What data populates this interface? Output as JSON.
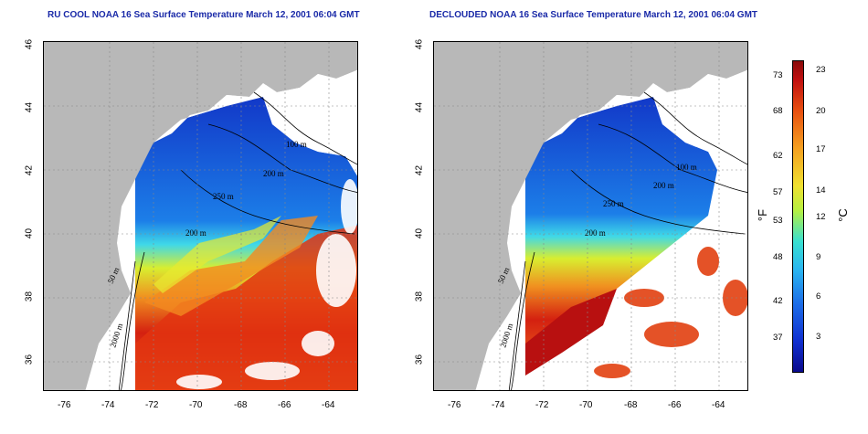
{
  "left_map": {
    "title": "RU COOL NOAA 16 Sea Surface Temperature March 12, 2001 06:04 GMT",
    "contours": [
      "100 m",
      "200 m",
      "250 m",
      "200 m",
      "50 m",
      "2000 m"
    ]
  },
  "right_map": {
    "title": "DECLOUDED NOAA 16 Sea Surface Temperature March 12, 2001 06:04 GMT",
    "contours": [
      "100 m",
      "200 m",
      "250 m",
      "200 m",
      "50 m",
      "2000 m"
    ]
  },
  "axes": {
    "x_ticks": [
      "-76",
      "-74",
      "-72",
      "-70",
      "-68",
      "-66",
      "-64"
    ],
    "y_ticks": [
      "46",
      "44",
      "42",
      "40",
      "38",
      "36"
    ]
  },
  "colorbar": {
    "fahrenheit_ticks": [
      "73",
      "68",
      "62",
      "57",
      "53",
      "48",
      "42",
      "37"
    ],
    "celsius_ticks": [
      "23",
      "20",
      "17",
      "14",
      "12",
      "9",
      "6",
      "3"
    ],
    "unit_f": "°F",
    "unit_c": "°C"
  },
  "colors": {
    "land": "#b8b8b8",
    "title": "#1a2aa8",
    "cold": "#1040d0",
    "warm": "#d82010"
  }
}
